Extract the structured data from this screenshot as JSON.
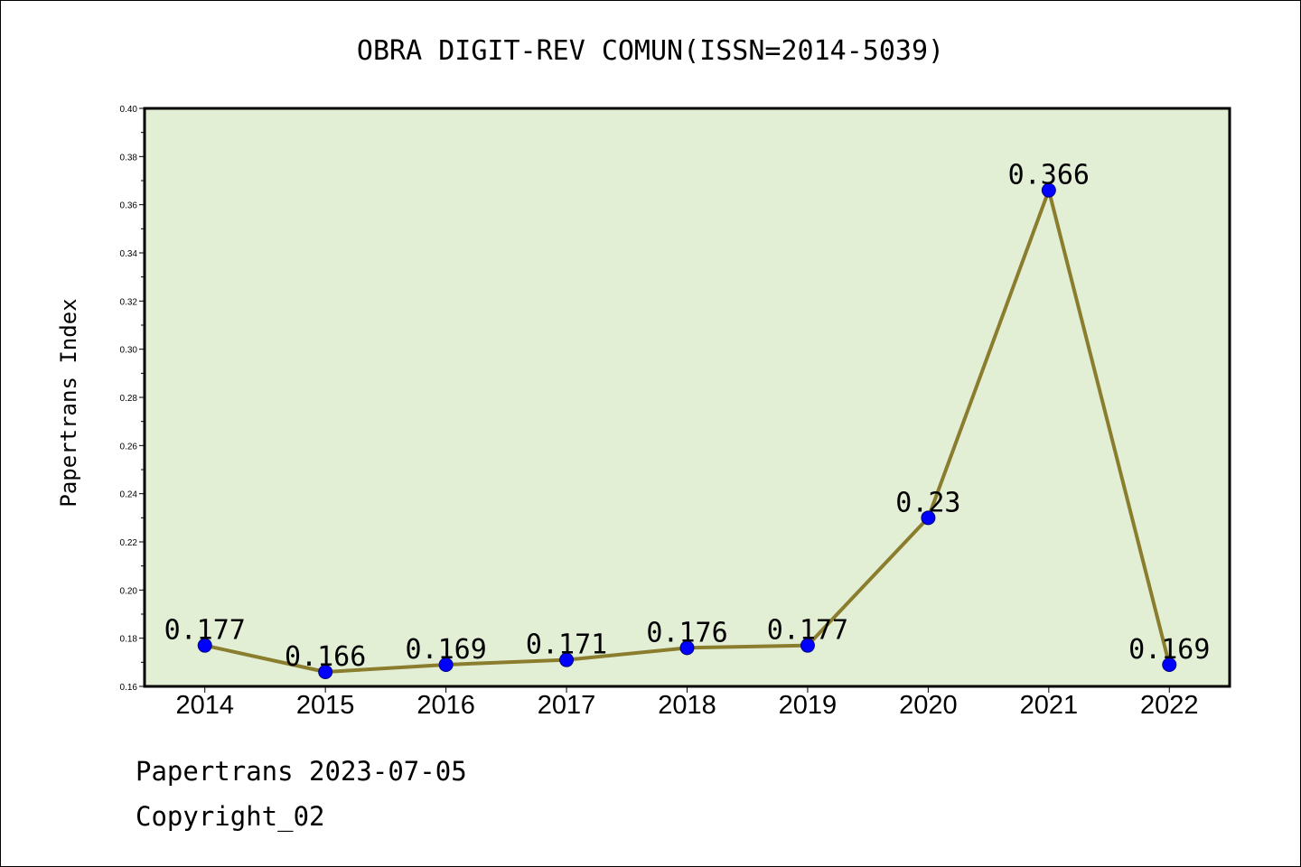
{
  "chart_data": {
    "type": "line",
    "title": "OBRA DIGIT-REV COMUN(ISSN=2014-5039)",
    "xlabel": "",
    "ylabel": "Papertrans Index",
    "categories": [
      "2014",
      "2015",
      "2016",
      "2017",
      "2018",
      "2019",
      "2020",
      "2021",
      "2022"
    ],
    "values": [
      0.177,
      0.166,
      0.169,
      0.171,
      0.176,
      0.177,
      0.23,
      0.366,
      0.169
    ],
    "data_labels": [
      "0.177",
      "0.166",
      "0.169",
      "0.171",
      "0.176",
      "0.177",
      "0.23",
      "0.366",
      "0.169"
    ],
    "ylim": [
      0.16,
      0.4
    ],
    "yticks": [
      "0.16",
      "0.18",
      "0.20",
      "0.22",
      "0.24",
      "0.26",
      "0.28",
      "0.30",
      "0.32",
      "0.34",
      "0.36",
      "0.38",
      "0.40"
    ],
    "grid": false,
    "legend": "none",
    "colors": {
      "plot_background": "#e2efd5",
      "line": "#8b7d2e",
      "marker_fill": "#0000ff",
      "marker_edge": "#000080"
    }
  },
  "footer": {
    "line1": "Papertrans 2023-07-05",
    "line2": "Copyright_02"
  }
}
